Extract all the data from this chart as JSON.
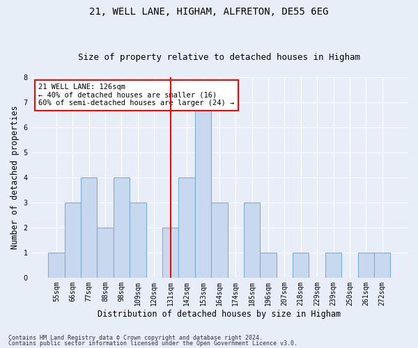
{
  "title1": "21, WELL LANE, HIGHAM, ALFRETON, DE55 6EG",
  "title2": "Size of property relative to detached houses in Higham",
  "xlabel": "Distribution of detached houses by size in Higham",
  "ylabel": "Number of detached properties",
  "categories": [
    "55sqm",
    "66sqm",
    "77sqm",
    "88sqm",
    "98sqm",
    "109sqm",
    "120sqm",
    "131sqm",
    "142sqm",
    "153sqm",
    "164sqm",
    "174sqm",
    "185sqm",
    "196sqm",
    "207sqm",
    "218sqm",
    "229sqm",
    "239sqm",
    "250sqm",
    "261sqm",
    "272sqm"
  ],
  "values": [
    1,
    3,
    4,
    2,
    4,
    3,
    0,
    2,
    4,
    7,
    3,
    0,
    3,
    1,
    0,
    1,
    0,
    1,
    0,
    1,
    1
  ],
  "bar_color": "#c8d8ee",
  "bar_edge_color": "#7bafd4",
  "red_line_index": 7,
  "annotation_text": "21 WELL LANE: 126sqm\n← 40% of detached houses are smaller (16)\n60% of semi-detached houses are larger (24) →",
  "annotation_box_color": "white",
  "annotation_box_edge_color": "red",
  "ylim": [
    0,
    8
  ],
  "yticks": [
    0,
    1,
    2,
    3,
    4,
    5,
    6,
    7,
    8
  ],
  "footer1": "Contains HM Land Registry data © Crown copyright and database right 2024.",
  "footer2": "Contains public sector information licensed under the Open Government Licence v3.0.",
  "bg_color": "#e8eef8",
  "plot_bg_color": "#e8eef8",
  "title1_fontsize": 10,
  "title2_fontsize": 9,
  "tick_fontsize": 7,
  "ylabel_fontsize": 8.5,
  "xlabel_fontsize": 8.5,
  "annotation_fontsize": 7.5
}
